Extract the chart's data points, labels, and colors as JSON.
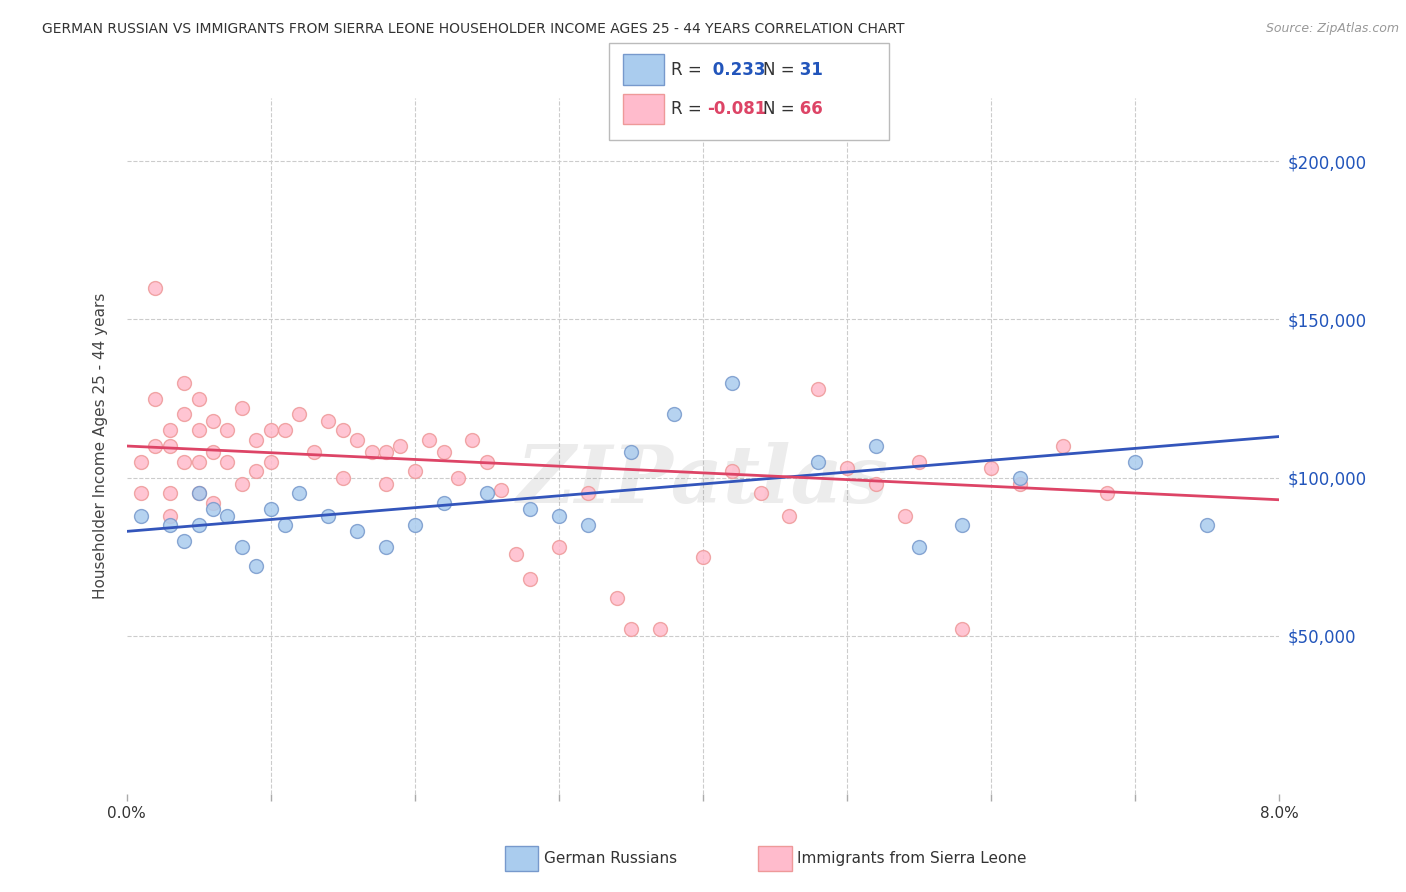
{
  "title": "GERMAN RUSSIAN VS IMMIGRANTS FROM SIERRA LEONE HOUSEHOLDER INCOME AGES 25 - 44 YEARS CORRELATION CHART",
  "source": "Source: ZipAtlas.com",
  "ylabel": "Householder Income Ages 25 - 44 years",
  "legend_blue_label": "German Russians",
  "legend_pink_label": "Immigrants from Sierra Leone",
  "r_blue": 0.233,
  "n_blue": 31,
  "r_pink": -0.081,
  "n_pink": 66,
  "xlim": [
    0.0,
    0.08
  ],
  "ylim": [
    0,
    220000
  ],
  "yticks": [
    50000,
    100000,
    150000,
    200000
  ],
  "ytick_labels": [
    "$50,000",
    "$100,000",
    "$150,000",
    "$200,000"
  ],
  "watermark": "ZIPatlas",
  "blue_scatter_x": [
    0.001,
    0.003,
    0.004,
    0.005,
    0.005,
    0.006,
    0.007,
    0.008,
    0.009,
    0.01,
    0.011,
    0.012,
    0.014,
    0.016,
    0.018,
    0.02,
    0.022,
    0.025,
    0.028,
    0.03,
    0.032,
    0.035,
    0.038,
    0.042,
    0.048,
    0.052,
    0.055,
    0.058,
    0.062,
    0.07,
    0.075
  ],
  "blue_scatter_y": [
    88000,
    85000,
    80000,
    95000,
    85000,
    90000,
    88000,
    78000,
    72000,
    90000,
    85000,
    95000,
    88000,
    83000,
    78000,
    85000,
    92000,
    95000,
    90000,
    88000,
    85000,
    108000,
    120000,
    130000,
    105000,
    110000,
    78000,
    85000,
    100000,
    105000,
    85000
  ],
  "pink_scatter_x": [
    0.001,
    0.001,
    0.002,
    0.002,
    0.002,
    0.003,
    0.003,
    0.003,
    0.003,
    0.004,
    0.004,
    0.004,
    0.005,
    0.005,
    0.005,
    0.005,
    0.006,
    0.006,
    0.006,
    0.007,
    0.007,
    0.008,
    0.008,
    0.009,
    0.009,
    0.01,
    0.01,
    0.011,
    0.012,
    0.013,
    0.014,
    0.015,
    0.015,
    0.016,
    0.017,
    0.018,
    0.018,
    0.019,
    0.02,
    0.021,
    0.022,
    0.023,
    0.024,
    0.025,
    0.026,
    0.027,
    0.028,
    0.03,
    0.032,
    0.034,
    0.035,
    0.037,
    0.04,
    0.042,
    0.044,
    0.046,
    0.048,
    0.05,
    0.052,
    0.054,
    0.055,
    0.058,
    0.06,
    0.062,
    0.065,
    0.068
  ],
  "pink_scatter_y": [
    105000,
    95000,
    160000,
    125000,
    110000,
    115000,
    110000,
    95000,
    88000,
    120000,
    105000,
    130000,
    125000,
    115000,
    105000,
    95000,
    118000,
    108000,
    92000,
    115000,
    105000,
    122000,
    98000,
    112000,
    102000,
    115000,
    105000,
    115000,
    120000,
    108000,
    118000,
    115000,
    100000,
    112000,
    108000,
    108000,
    98000,
    110000,
    102000,
    112000,
    108000,
    100000,
    112000,
    105000,
    96000,
    76000,
    68000,
    78000,
    95000,
    62000,
    52000,
    52000,
    75000,
    102000,
    95000,
    88000,
    128000,
    103000,
    98000,
    88000,
    105000,
    52000,
    103000,
    98000,
    110000,
    95000
  ],
  "blue_line_x": [
    0.0,
    0.08
  ],
  "blue_line_y": [
    83000,
    113000
  ],
  "pink_line_x": [
    0.0,
    0.08
  ],
  "pink_line_y": [
    110000,
    93000
  ],
  "dot_size": 100,
  "blue_face_color": "#AACCEE",
  "blue_edge_color": "#7799CC",
  "pink_face_color": "#FFBBCC",
  "pink_edge_color": "#EE9999",
  "blue_line_color": "#3355BB",
  "pink_line_color": "#DD4466",
  "grid_color": "#CCCCCC",
  "bg_color": "#FFFFFF",
  "title_color": "#333333",
  "right_tick_color": "#2255BB",
  "legend_r_color": "#333333",
  "legend_blue_val_color": "#2255BB",
  "legend_pink_val_color": "#DD4466"
}
